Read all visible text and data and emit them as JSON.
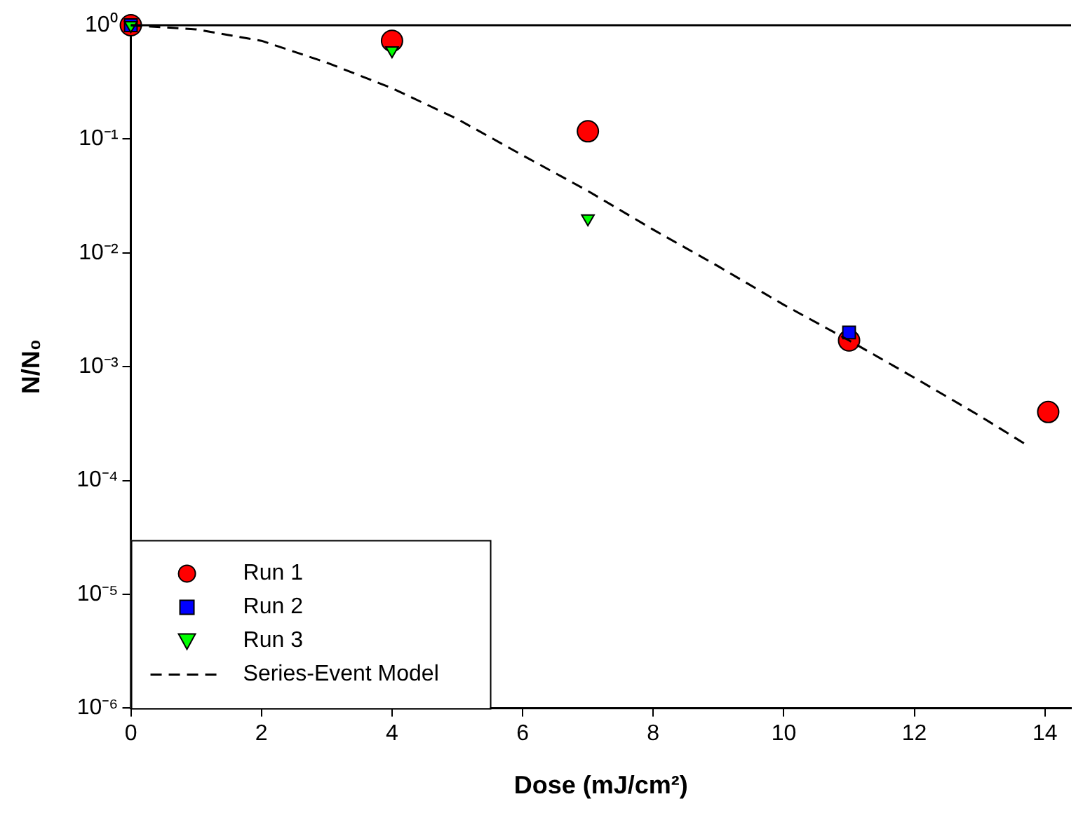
{
  "chart_data": {
    "type": "scatter",
    "xlabel": "Dose (mJ/cm²)",
    "ylabel": "N/N₀",
    "log": "y",
    "xlim": [
      0,
      14.4
    ],
    "xticks": [
      0,
      2,
      4,
      6,
      8,
      10,
      12,
      14
    ],
    "ylim": [
      1e-06,
      1
    ],
    "yticks": [
      {
        "value": 1e-06,
        "label": "10⁻⁶"
      },
      {
        "value": 1e-05,
        "label": "10⁻⁵"
      },
      {
        "value": 0.0001,
        "label": "10⁻⁴"
      },
      {
        "value": 0.001,
        "label": "10⁻³"
      },
      {
        "value": 0.01,
        "label": "10⁻²"
      },
      {
        "value": 0.1,
        "label": "10⁻¹"
      },
      {
        "value": 1,
        "label": "10⁰"
      }
    ],
    "grid": false,
    "legend": "bottom left",
    "ref_lines": [
      {
        "axis": "y",
        "value": 1,
        "color": "#000000"
      }
    ],
    "series": [
      {
        "name": "Run 1",
        "marker": "circle",
        "color": "#ff0000",
        "x": [
          0,
          4,
          7,
          11,
          14.05
        ],
        "values": [
          1,
          0.73,
          0.117,
          0.0017,
          0.0004
        ]
      },
      {
        "name": "Run 2",
        "marker": "square",
        "color": "#0000ff",
        "x": [
          0,
          11
        ],
        "values": [
          1,
          0.002
        ]
      },
      {
        "name": "Run 3",
        "marker": "triangle",
        "color": "#00ff00",
        "x": [
          0,
          4,
          7
        ],
        "values": [
          1,
          0.6,
          0.02
        ]
      },
      {
        "name": "Series-Event Model",
        "type": "line",
        "marker": "none",
        "line_style": "dashed",
        "color": "#000000",
        "x": [
          0,
          1,
          2,
          3,
          4,
          5,
          6,
          7,
          8,
          9,
          10,
          11,
          12,
          13,
          13.75
        ],
        "values": [
          1,
          0.92,
          0.73,
          0.47,
          0.28,
          0.15,
          0.072,
          0.035,
          0.016,
          0.0076,
          0.0035,
          0.0017,
          0.0008,
          0.00037,
          0.0002
        ]
      }
    ]
  }
}
